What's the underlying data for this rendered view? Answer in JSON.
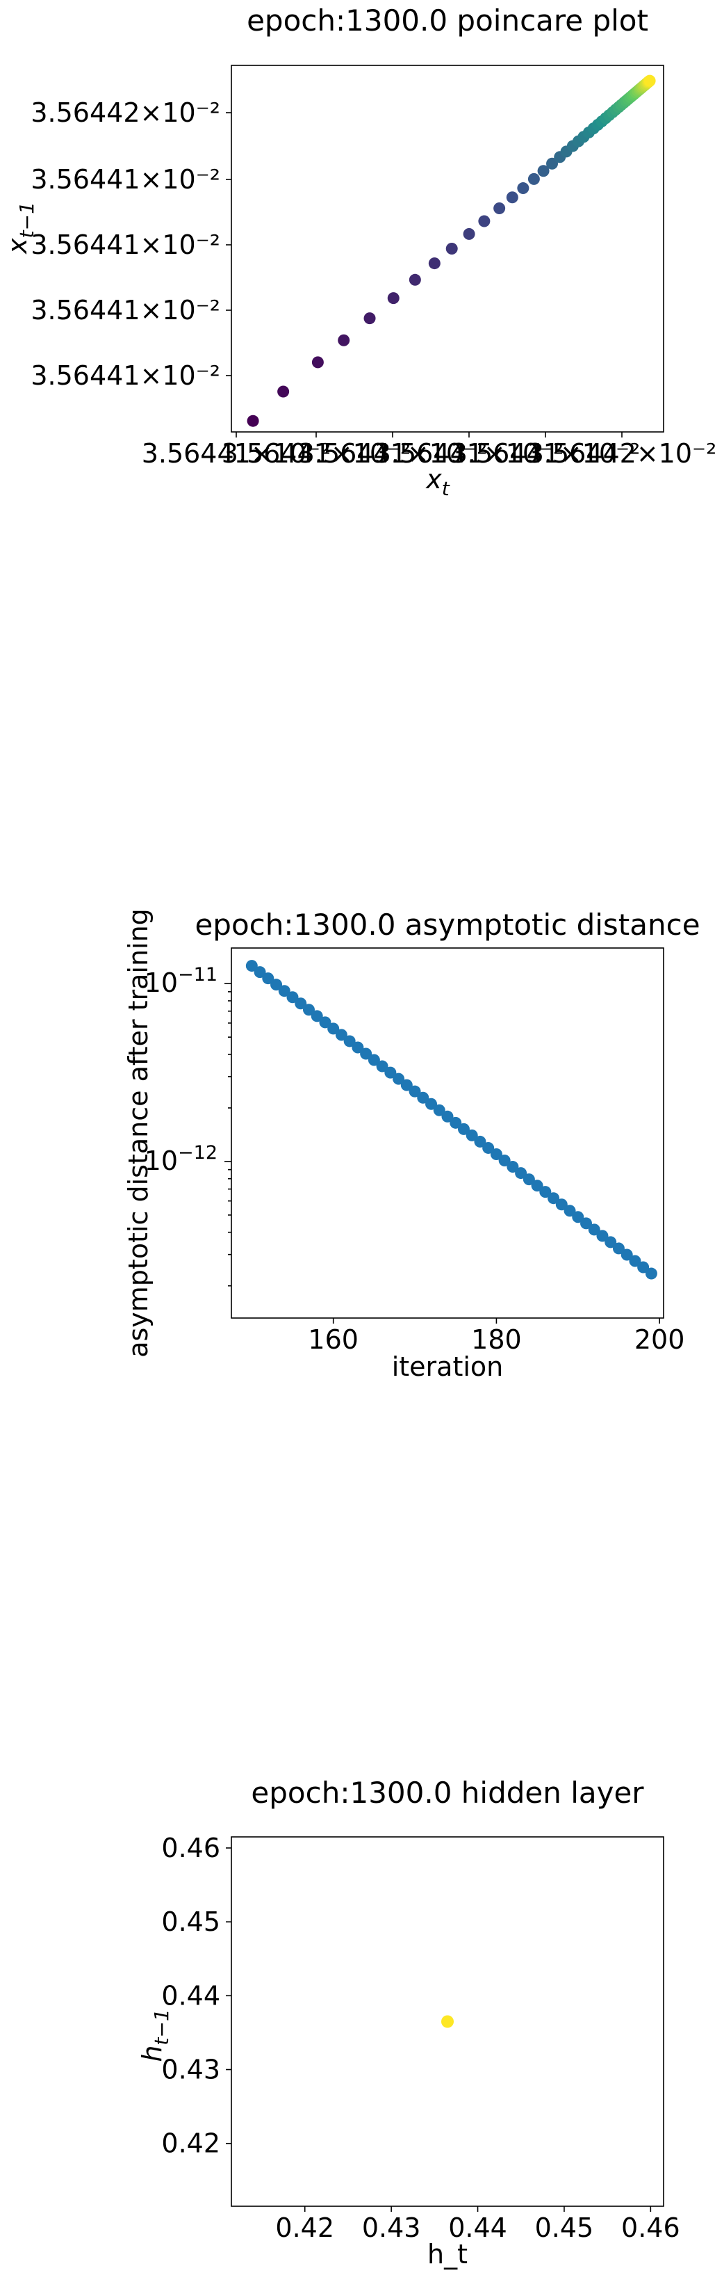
{
  "chart_data": [
    {
      "type": "scatter",
      "title": "epoch:1300.0 poincare plot",
      "xlabel_base": "x",
      "xlabel_sub": "t",
      "ylabel_base": "x",
      "ylabel_sub": "t−1",
      "colormap": "viridis",
      "x_tick_labels": [
        "3.56441",
        "3.56441",
        "3.56441",
        "3.56441",
        "3.56441",
        "3.56442"
      ],
      "x_tick_suffix": "×10⁻²",
      "y_tick_labels": [
        "3.56441",
        "3.56441",
        "3.56441",
        "3.56441",
        "3.56442"
      ],
      "y_tick_suffix": "×10⁻²",
      "xlim": [
        0,
        1
      ],
      "ylim": [
        0,
        1
      ],
      "x": [
        0.05,
        0.12,
        0.2,
        0.26,
        0.32,
        0.375,
        0.425,
        0.47,
        0.51,
        0.55,
        0.585,
        0.62,
        0.65,
        0.675,
        0.7,
        0.722,
        0.742,
        0.76,
        0.775,
        0.79,
        0.803,
        0.815,
        0.827,
        0.838,
        0.848,
        0.857,
        0.866,
        0.874,
        0.882,
        0.889,
        0.896,
        0.902,
        0.908,
        0.913,
        0.918,
        0.923,
        0.928,
        0.932,
        0.936,
        0.94,
        0.944,
        0.947,
        0.95,
        0.953,
        0.956,
        0.959,
        0.962,
        0.964,
        0.966,
        0.968
      ],
      "y": [
        0.03,
        0.11,
        0.19,
        0.25,
        0.31,
        0.365,
        0.415,
        0.46,
        0.5,
        0.54,
        0.575,
        0.61,
        0.64,
        0.665,
        0.69,
        0.712,
        0.732,
        0.75,
        0.765,
        0.78,
        0.793,
        0.805,
        0.817,
        0.828,
        0.838,
        0.847,
        0.856,
        0.864,
        0.872,
        0.879,
        0.886,
        0.892,
        0.898,
        0.903,
        0.908,
        0.913,
        0.918,
        0.922,
        0.926,
        0.93,
        0.934,
        0.937,
        0.94,
        0.943,
        0.946,
        0.949,
        0.952,
        0.954,
        0.956,
        0.958
      ]
    },
    {
      "type": "scatter",
      "title": "epoch:1300.0 asymptotic distance",
      "xlabel": "iteration",
      "ylabel": "asymptotic distance after training",
      "xlim": [
        147.5,
        200.5
      ],
      "ylog": true,
      "ylim_log10": [
        -12.88,
        -10.8
      ],
      "x_ticks": [
        160,
        180,
        200
      ],
      "x_tick_labels": [
        "160",
        "180",
        "200"
      ],
      "y_ticks_log10": [
        -11,
        -12
      ],
      "y_tick_labels": [
        "10",
        "10"
      ],
      "y_tick_exponents": [
        "−11",
        "−12"
      ],
      "color": "#1f77b4",
      "x_start": 150,
      "x_end": 199,
      "log10_y_start": -10.9,
      "log10_y_end": -12.63
    },
    {
      "type": "scatter",
      "title": "epoch:1300.0 hidden layer",
      "xlabel": "h_t",
      "ylabel_base": "h",
      "ylabel_sub": "t−1",
      "xlim": [
        0.4115,
        0.4615
      ],
      "ylim": [
        0.4115,
        0.4615
      ],
      "x_ticks": [
        0.42,
        0.43,
        0.44,
        0.45,
        0.46
      ],
      "x_tick_labels": [
        "0.42",
        "0.43",
        "0.44",
        "0.45",
        "0.46"
      ],
      "y_ticks": [
        0.42,
        0.43,
        0.44,
        0.45,
        0.46
      ],
      "y_tick_labels": [
        "0.42",
        "0.43",
        "0.44",
        "0.45",
        "0.46"
      ],
      "x": [
        0.4365
      ],
      "y": [
        0.4365
      ],
      "color": "#fde725"
    }
  ]
}
